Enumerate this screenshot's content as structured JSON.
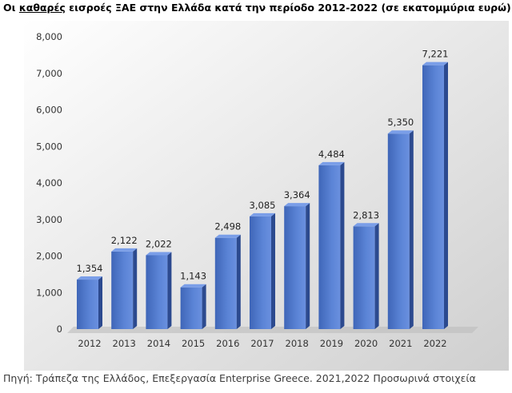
{
  "title": {
    "prefix": "Οι ",
    "underlined": "καθαρές",
    "suffix": " εισροές ΞΑΕ στην Ελλάδα κατά την περίοδο 2012-2022 (σε εκατομμύρια ευρώ)"
  },
  "footer": "Πηγή: Τράπεζα της Ελλάδος, Επεξεργασία Enterprise Greece. 2021,2022 Προσωρινά στοιχεία",
  "colors": {
    "bar_front": "#4a73c9",
    "bar_side": "#2c4a8f",
    "bar_top": "#7a9ee8",
    "background_light": "#ffffff",
    "background_dark": "#cfcfcf"
  },
  "chart_data": {
    "type": "bar",
    "style": "3d-columns",
    "categories": [
      "2012",
      "2013",
      "2014",
      "2015",
      "2016",
      "2017",
      "2018",
      "2019",
      "2020",
      "2021",
      "2022"
    ],
    "values": [
      1354,
      2122,
      2022,
      1143,
      2498,
      3085,
      3364,
      4484,
      2813,
      5350,
      7221
    ],
    "data_labels": [
      "1,354",
      "2,122",
      "2,022",
      "1,143",
      "2,498",
      "3,085",
      "3,364",
      "4,484",
      "2,813",
      "5,350",
      "7,221"
    ],
    "yticks": [
      "0",
      "1,000",
      "2,000",
      "3,000",
      "4,000",
      "5,000",
      "6,000",
      "7,000",
      "8,000"
    ],
    "ylim": [
      0,
      8000
    ],
    "grid": false,
    "legend": "none"
  }
}
